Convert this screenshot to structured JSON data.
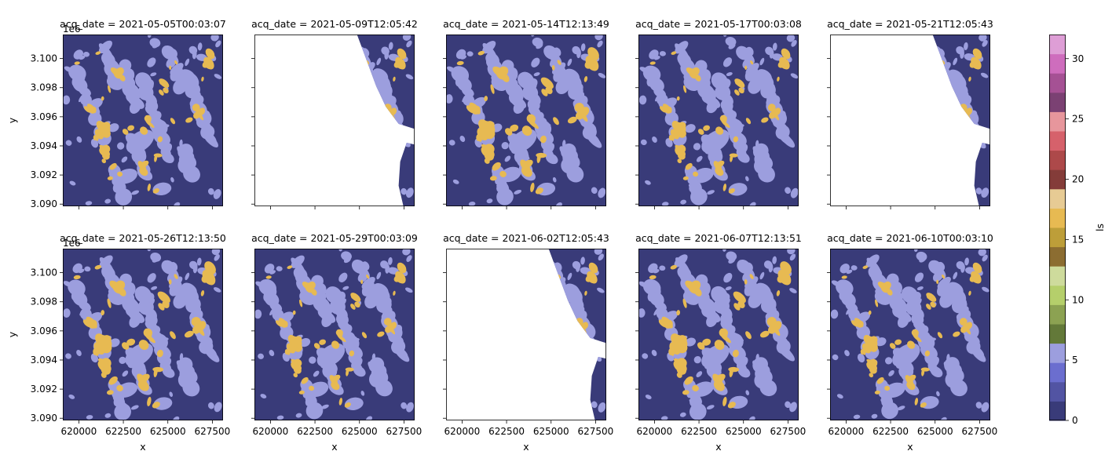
{
  "chart_data": {
    "type": "heatmap",
    "layout": "facet-grid 2x5",
    "panels": [
      {
        "title": "acq_date = 2021-05-05T00:03:07",
        "coverage": "full"
      },
      {
        "title": "acq_date = 2021-05-09T12:05:42",
        "coverage": "partial-east"
      },
      {
        "title": "acq_date = 2021-05-14T12:13:49",
        "coverage": "full"
      },
      {
        "title": "acq_date = 2021-05-17T00:03:08",
        "coverage": "full"
      },
      {
        "title": "acq_date = 2021-05-21T12:05:43",
        "coverage": "partial-east"
      },
      {
        "title": "acq_date = 2021-05-26T12:13:50",
        "coverage": "full"
      },
      {
        "title": "acq_date = 2021-05-29T00:03:09",
        "coverage": "full"
      },
      {
        "title": "acq_date = 2021-06-02T12:05:43",
        "coverage": "partial-east"
      },
      {
        "title": "acq_date = 2021-06-07T12:13:51",
        "coverage": "full"
      },
      {
        "title": "acq_date = 2021-06-10T00:03:10",
        "coverage": "full"
      }
    ],
    "xlabel": "x",
    "ylabel": "y",
    "y_offset_label": "1e6",
    "xlim": [
      619100,
      628100
    ],
    "ylim": [
      3.08985,
      3.10165
    ],
    "x_ticks": [
      620000,
      622500,
      625000,
      627500
    ],
    "x_tick_labels": [
      "620000",
      "622500",
      "625000",
      "627500"
    ],
    "y_ticks": [
      3.09,
      3.092,
      3.094,
      3.096,
      3.098,
      3.1
    ],
    "y_tick_labels": [
      "3.090",
      "3.092",
      "3.094",
      "3.096",
      "3.098",
      "3.100"
    ],
    "class_values": {
      "background": 0,
      "lavender": 5,
      "gold": 16
    },
    "colorbar": {
      "label": "ls",
      "range": [
        0,
        32
      ],
      "ticks": [
        0,
        5,
        10,
        15,
        20,
        25,
        30
      ],
      "tick_labels": [
        "0",
        "5",
        "10",
        "15",
        "20",
        "25",
        "30"
      ],
      "colors": [
        "#393b79",
        "#5254a3",
        "#6b6ecf",
        "#9c9ede",
        "#637939",
        "#8ca252",
        "#b5cf6b",
        "#cedb9c",
        "#8c6d31",
        "#bd9e39",
        "#e7ba52",
        "#e7cb94",
        "#843c39",
        "#ad494a",
        "#d6616b",
        "#e7969c",
        "#7b4173",
        "#a55194",
        "#ce6dbd",
        "#de9ed6"
      ]
    }
  }
}
